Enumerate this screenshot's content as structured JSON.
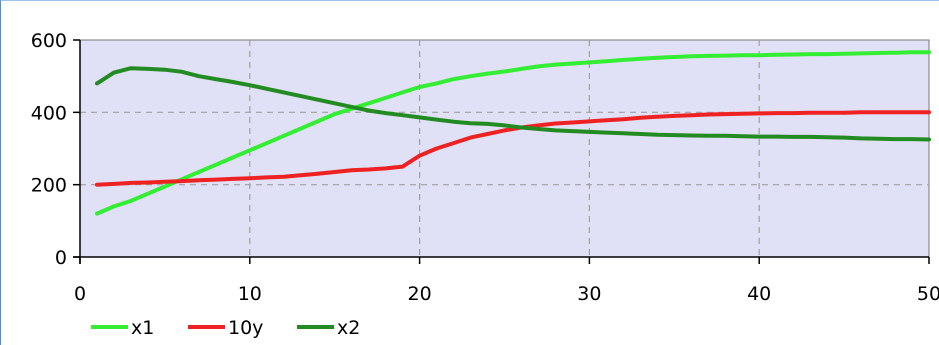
{
  "chart_data": {
    "type": "line",
    "title": "",
    "xlabel": "",
    "ylabel": "",
    "xlim": [
      0,
      50
    ],
    "ylim": [
      0,
      600
    ],
    "x_ticks": [
      0,
      10,
      20,
      30,
      40,
      50
    ],
    "x_tick_labels": [
      "0",
      "10",
      "20",
      "30",
      "40",
      "50"
    ],
    "y_ticks": [
      0,
      200,
      400,
      600
    ],
    "y_tick_labels": [
      "0",
      "200",
      "400",
      "600"
    ],
    "grid": true,
    "legend_position": "bottom-left",
    "plot_background": "#e0e0f6",
    "x": [
      1,
      2,
      3,
      4,
      5,
      6,
      7,
      8,
      9,
      10,
      11,
      12,
      13,
      14,
      15,
      16,
      17,
      18,
      19,
      20,
      21,
      22,
      23,
      24,
      25,
      26,
      27,
      28,
      29,
      30,
      31,
      32,
      33,
      34,
      35,
      36,
      37,
      38,
      39,
      40,
      41,
      42,
      43,
      44,
      45,
      46,
      47,
      48,
      49,
      50
    ],
    "series": [
      {
        "name": "x1",
        "color": "#33ee33",
        "values": [
          120,
          140,
          155,
          175,
          195,
          215,
          235,
          255,
          275,
          295,
          315,
          335,
          355,
          375,
          395,
          410,
          425,
          440,
          455,
          470,
          480,
          492,
          500,
          507,
          513,
          520,
          527,
          532,
          535,
          538,
          541,
          545,
          548,
          551,
          553,
          555,
          556,
          557,
          558,
          558,
          559,
          560,
          561,
          561,
          562,
          563,
          564,
          565,
          566,
          566
        ]
      },
      {
        "name": "10y",
        "color": "#ee2222",
        "values": [
          200,
          202,
          205,
          206,
          208,
          210,
          212,
          214,
          216,
          218,
          220,
          222,
          226,
          230,
          235,
          240,
          242,
          245,
          250,
          280,
          300,
          315,
          330,
          340,
          350,
          358,
          364,
          369,
          372,
          375,
          378,
          381,
          385,
          388,
          390,
          392,
          394,
          395,
          396,
          397,
          398,
          398,
          399,
          399,
          399,
          400,
          400,
          400,
          400,
          400
        ]
      },
      {
        "name": "x2",
        "color": "#228b22",
        "values": [
          480,
          510,
          522,
          520,
          518,
          512,
          500,
          492,
          484,
          475,
          465,
          455,
          445,
          435,
          425,
          415,
          405,
          398,
          392,
          386,
          380,
          374,
          370,
          368,
          364,
          358,
          354,
          350,
          348,
          346,
          344,
          342,
          340,
          338,
          337,
          336,
          335,
          335,
          334,
          333,
          333,
          332,
          332,
          331,
          330,
          328,
          327,
          326,
          326,
          325
        ]
      }
    ]
  }
}
